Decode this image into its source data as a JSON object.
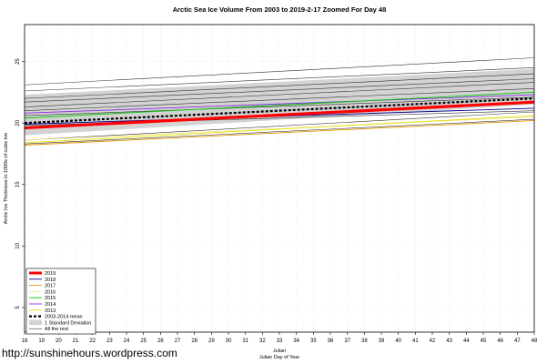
{
  "watermark": "http://sunshinehours.wordpress.com",
  "chart_data": {
    "type": "line",
    "title": "Arctic Sea Ice Volume From 2003 to 2019-2-17 Zoomed For Day 48",
    "xlabel": "Julian",
    "xlabel2": "Julian Day of Year",
    "ylabel": "Arctic Ice Thickness in 1000s of cubic km",
    "xlim": [
      18,
      48
    ],
    "ylim": [
      3,
      28
    ],
    "x_ticks": [
      18,
      19,
      20,
      21,
      22,
      23,
      24,
      25,
      26,
      27,
      28,
      29,
      30,
      31,
      32,
      33,
      34,
      35,
      36,
      37,
      38,
      39,
      40,
      41,
      42,
      43,
      44,
      45,
      46,
      47,
      48
    ],
    "y_ticks": [
      5,
      10,
      15,
      20,
      25
    ],
    "y_tick_labels": [
      "5",
      "10",
      "15",
      "20",
      "25"
    ],
    "grid": true,
    "legend_position": "bottom-left",
    "std_band": {
      "name": "1 Standard Deviation",
      "color": "#d3d3d3",
      "lower": [
        19.0,
        21.5
      ],
      "upper": [
        22.3,
        24.4
      ]
    },
    "series": [
      {
        "name": "2019",
        "color": "#ff0000",
        "width": 3.2,
        "dash": "",
        "values": [
          19.6,
          21.7
        ]
      },
      {
        "name": "2018",
        "color": "#00008b",
        "width": 0.9,
        "dash": "",
        "values": [
          19.9,
          21.2
        ]
      },
      {
        "name": "2017",
        "color": "#e69500",
        "width": 0.9,
        "dash": "",
        "values": [
          18.2,
          20.2
        ]
      },
      {
        "name": "2016",
        "color": "#f2e6a0",
        "width": 0.9,
        "dash": "",
        "values": [
          18.6,
          20.5
        ]
      },
      {
        "name": "2015",
        "color": "#00cc00",
        "width": 0.9,
        "dash": "",
        "values": [
          20.4,
          22.5
        ]
      },
      {
        "name": "2014",
        "color": "#8a2be2",
        "width": 0.9,
        "dash": "",
        "values": [
          20.8,
          22.3
        ]
      },
      {
        "name": "2013",
        "color": "#e8e000",
        "width": 0.9,
        "dash": "",
        "values": [
          18.4,
          20.6
        ]
      },
      {
        "name": "2003-2014 mean",
        "color": "#000000",
        "width": 2.2,
        "dash": "3,2",
        "values": [
          20.0,
          22.0
        ]
      },
      {
        "name": "All the rest",
        "color": "#333333",
        "width": 0.6,
        "dash": "",
        "values": [
          [
            23.1,
            25.3
          ],
          [
            22.6,
            24.5
          ],
          [
            22.0,
            24.0
          ],
          [
            21.7,
            23.6
          ],
          [
            21.3,
            23.3
          ],
          [
            21.0,
            22.8
          ],
          [
            20.6,
            22.1
          ],
          [
            19.8,
            21.0
          ],
          [
            18.6,
            20.9
          ],
          [
            18.3,
            20.3
          ]
        ]
      }
    ]
  }
}
